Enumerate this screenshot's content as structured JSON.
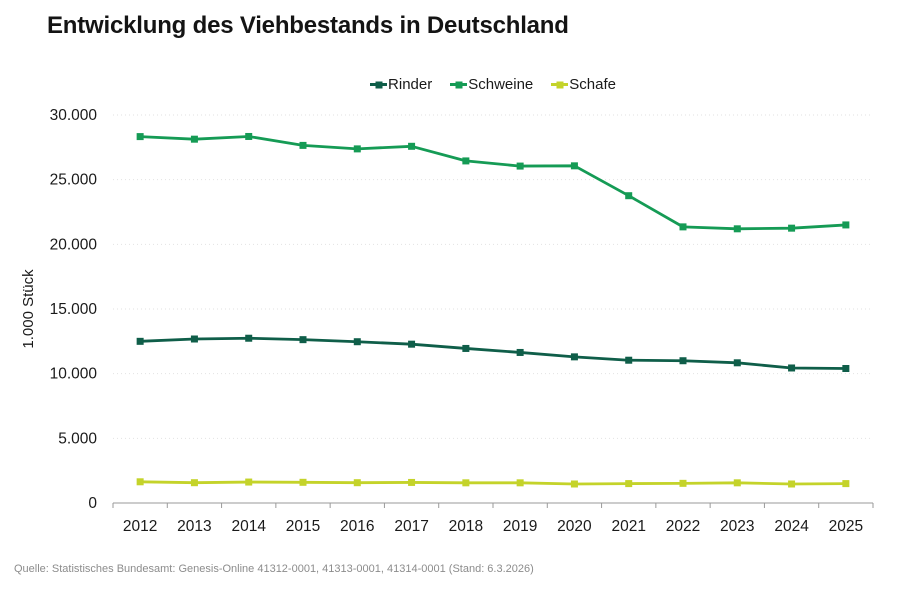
{
  "title": "Entwicklung des Viehbestands in Deutschland",
  "source": "Quelle: Statistisches Bundesamt: Genesis-Online 41312-0001, 41313-0001, 41314-0001 (Stand: 6.3.2026)",
  "colors": {
    "title_text": "#141414",
    "label_text": "#1a1a1a",
    "grid": "#e2e2e2",
    "axis": "#9a9a9a",
    "source_text": "#8c8c8c"
  },
  "chart_data": {
    "type": "line",
    "title": "Entwicklung des Viehbestands in Deutschland",
    "xlabel": "",
    "ylabel": "1.000 Stück",
    "ylim": [
      0,
      30000
    ],
    "grid": "horizontal-dotted",
    "legend_position": "top-center",
    "ytick_values": [
      0,
      5000,
      10000,
      15000,
      20000,
      25000,
      30000
    ],
    "ytick_labels": [
      "0",
      "5.000",
      "10.000",
      "15.000",
      "20.000",
      "25.000",
      "30.000"
    ],
    "categories": [
      "2012",
      "2013",
      "2014",
      "2015",
      "2016",
      "2017",
      "2018",
      "2019",
      "2020",
      "2021",
      "2022",
      "2023",
      "2024",
      "2025"
    ],
    "series": [
      {
        "name": "Rinder",
        "color": "#0f5e49",
        "values": [
          12500,
          12680,
          12740,
          12630,
          12470,
          12280,
          11950,
          11640,
          11300,
          11040,
          11000,
          10840,
          10440,
          10400
        ]
      },
      {
        "name": "Schweine",
        "color": "#159b55",
        "values": [
          28330,
          28130,
          28340,
          27650,
          27380,
          27580,
          26450,
          26050,
          26070,
          23760,
          21350,
          21200,
          21250,
          21500
        ]
      },
      {
        "name": "Schafe",
        "color": "#c4d32a",
        "values": [
          1640,
          1570,
          1620,
          1600,
          1570,
          1590,
          1560,
          1560,
          1470,
          1500,
          1520,
          1560,
          1470,
          1500
        ]
      }
    ]
  }
}
